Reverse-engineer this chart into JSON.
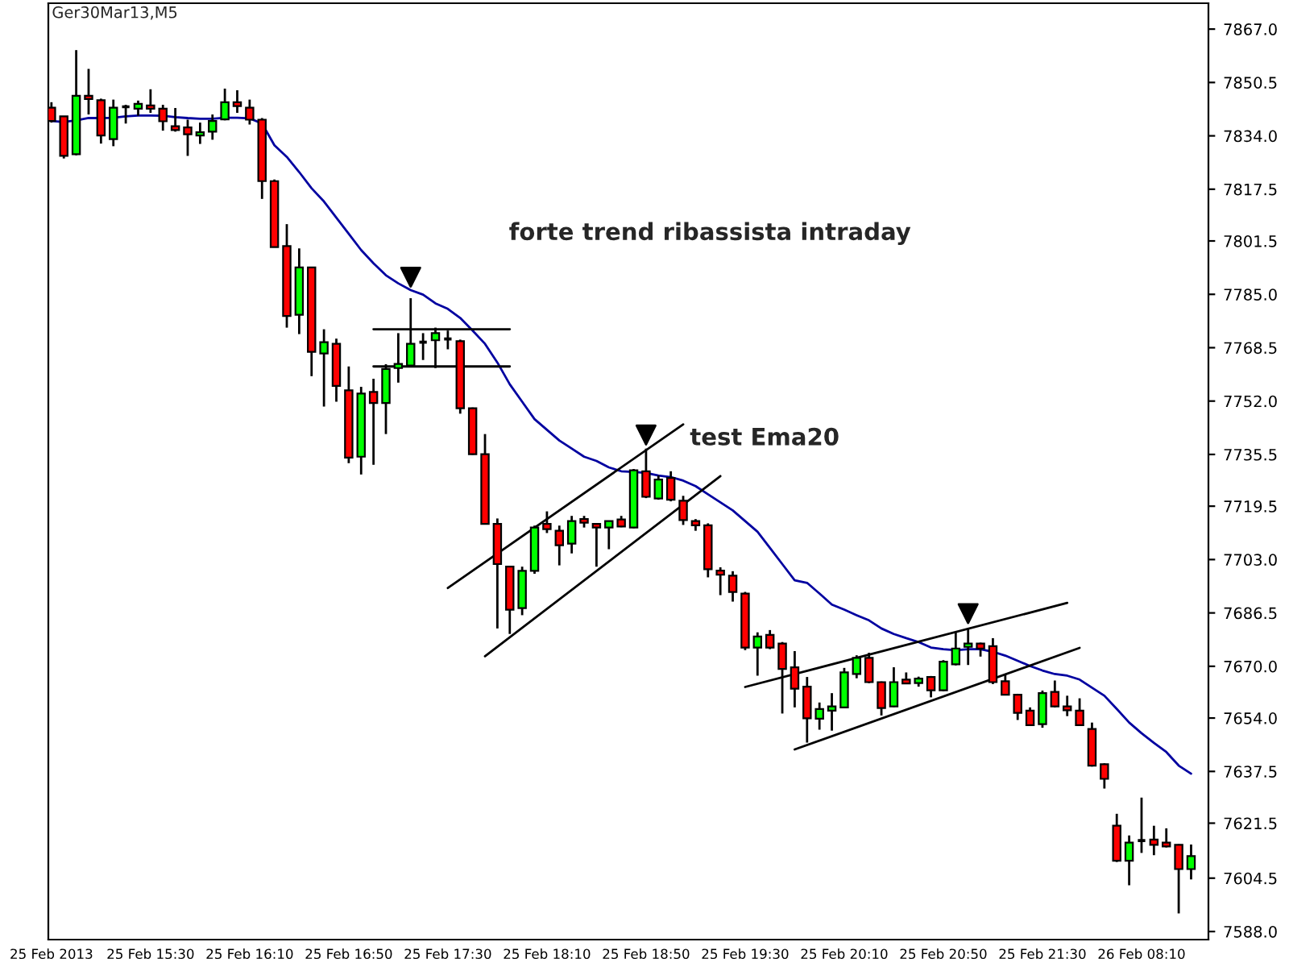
{
  "chart_data": {
    "type": "candlestick",
    "title": "Ger30Mar13,M5",
    "categories": [
      "25 Feb 2013",
      null,
      null,
      null,
      null,
      null,
      null,
      null,
      "25 Feb 15:30",
      null,
      null,
      null,
      null,
      null,
      null,
      null,
      "25 Feb 16:10",
      null,
      null,
      null,
      null,
      null,
      null,
      null,
      "25 Feb 16:50",
      null,
      null,
      null,
      null,
      null,
      null,
      null,
      "25 Feb 17:30",
      null,
      null,
      null,
      null,
      null,
      null,
      null,
      "25 Feb 18:10",
      null,
      null,
      null,
      null,
      null,
      null,
      null,
      "25 Feb 18:50",
      null,
      null,
      null,
      null,
      null,
      null,
      null,
      "25 Feb 19:30",
      null,
      null,
      null,
      null,
      null,
      null,
      null,
      "25 Feb 20:10",
      null,
      null,
      null,
      null,
      null,
      null,
      null,
      "25 Feb 20:50",
      null,
      null,
      null,
      null,
      null,
      null,
      null,
      "25 Feb 21:30",
      null,
      null,
      null,
      null,
      null,
      null,
      null,
      "26 Feb 08:10",
      null,
      null,
      null,
      null
    ],
    "ohlc": [
      [
        7842.7,
        7844.4,
        7838.1,
        7838.6
      ],
      [
        7840.0,
        7840.0,
        7827.0,
        7827.8
      ],
      [
        7828.3,
        7860.5,
        7828.0,
        7846.4
      ],
      [
        7846.4,
        7854.7,
        7840.6,
        7845.4
      ],
      [
        7845.0,
        7845.5,
        7831.6,
        7834.1
      ],
      [
        7833.0,
        7845.2,
        7830.8,
        7842.7
      ],
      [
        7843.0,
        7843.6,
        7837.8,
        7843.0
      ],
      [
        7842.4,
        7844.9,
        7840.2,
        7843.9
      ],
      [
        7843.4,
        7848.4,
        7841.1,
        7842.4
      ],
      [
        7842.4,
        7843.6,
        7835.6,
        7838.5
      ],
      [
        7837.0,
        7842.6,
        7835.3,
        7835.8
      ],
      [
        7836.6,
        7839.0,
        7827.8,
        7834.5
      ],
      [
        7834.1,
        7838.1,
        7831.5,
        7835.1
      ],
      [
        7835.3,
        7840.6,
        7832.8,
        7838.6
      ],
      [
        7839.1,
        7848.6,
        7838.8,
        7844.4
      ],
      [
        7844.4,
        7848.1,
        7841.1,
        7843.2
      ],
      [
        7842.7,
        7845.2,
        7837.5,
        7839.0
      ],
      [
        7839.0,
        7839.5,
        7814.5,
        7820.0
      ],
      [
        7820.0,
        7820.5,
        7799.5,
        7799.6
      ],
      [
        7799.9,
        7806.7,
        7774.7,
        7778.3
      ],
      [
        7778.7,
        7799.2,
        7772.7,
        7793.3
      ],
      [
        7793.3,
        7793.5,
        7759.7,
        7767.2
      ],
      [
        7766.7,
        7774.2,
        7750.3,
        7770.2
      ],
      [
        7769.7,
        7771.3,
        7751.8,
        7756.7
      ],
      [
        7755.3,
        7762.7,
        7732.8,
        7734.5
      ],
      [
        7734.8,
        7756.4,
        7729.3,
        7754.3
      ],
      [
        7754.8,
        7758.9,
        7732.3,
        7751.4
      ],
      [
        7751.4,
        7763.4,
        7741.8,
        7761.9
      ],
      [
        7762.2,
        7773.0,
        7757.7,
        7763.5
      ],
      [
        7763.0,
        7783.8,
        7763.0,
        7769.7
      ],
      [
        7770.2,
        7773.0,
        7764.7,
        7770.2
      ],
      [
        7770.8,
        7774.7,
        7762.2,
        7773.0
      ],
      [
        7771.2,
        7773.8,
        7768.0,
        7771.2
      ],
      [
        7770.5,
        7771.0,
        7748.1,
        7749.8
      ],
      [
        7749.8,
        7750.0,
        7735.4,
        7735.6
      ],
      [
        7735.6,
        7741.8,
        7713.8,
        7714.0
      ],
      [
        7714.0,
        7715.7,
        7681.7,
        7701.6
      ],
      [
        7700.8,
        7701.0,
        7680.0,
        7687.5
      ],
      [
        7688.0,
        7700.8,
        7685.8,
        7699.5
      ],
      [
        7699.5,
        7713.5,
        7698.6,
        7712.9
      ],
      [
        7714.0,
        7717.9,
        7711.2,
        7712.4
      ],
      [
        7711.9,
        7713.5,
        7701.2,
        7707.4
      ],
      [
        7707.9,
        7716.5,
        7704.9,
        7714.9
      ],
      [
        7715.5,
        7716.5,
        7712.9,
        7714.4
      ],
      [
        7714.0,
        7714.0,
        7700.8,
        7712.9
      ],
      [
        7712.9,
        7715.0,
        7706.2,
        7714.9
      ],
      [
        7715.4,
        7716.5,
        7713.0,
        7713.2
      ],
      [
        7712.9,
        7731.0,
        7712.7,
        7730.6
      ],
      [
        7730.3,
        7737.3,
        7722.0,
        7722.4
      ],
      [
        7721.9,
        7729.0,
        7721.5,
        7727.7
      ],
      [
        7728.2,
        7730.3,
        7721.0,
        7721.5
      ],
      [
        7721.2,
        7722.7,
        7713.7,
        7715.2
      ],
      [
        7714.9,
        7715.5,
        7711.9,
        7713.6
      ],
      [
        7713.6,
        7714.2,
        7697.5,
        7700.0
      ],
      [
        7699.6,
        7700.6,
        7692.0,
        7698.3
      ],
      [
        7698.0,
        7699.4,
        7690.0,
        7693.0
      ],
      [
        7692.5,
        7693.0,
        7675.0,
        7675.8
      ],
      [
        7675.8,
        7680.5,
        7667.1,
        7679.2
      ],
      [
        7679.7,
        7681.2,
        7675.3,
        7675.8
      ],
      [
        7677.0,
        7677.5,
        7655.4,
        7669.2
      ],
      [
        7669.7,
        7674.7,
        7657.3,
        7663.1
      ],
      [
        7663.7,
        7666.7,
        7646.4,
        7653.9
      ],
      [
        7653.8,
        7658.8,
        7650.4,
        7656.8
      ],
      [
        7656.3,
        7661.7,
        7650.1,
        7657.6
      ],
      [
        7657.3,
        7669.5,
        7657.0,
        7668.1
      ],
      [
        7667.6,
        7673.4,
        7666.3,
        7672.6
      ],
      [
        7672.6,
        7674.2,
        7664.8,
        7665.1
      ],
      [
        7665.1,
        7665.3,
        7654.8,
        7657.1
      ],
      [
        7657.6,
        7669.7,
        7657.4,
        7665.1
      ],
      [
        7665.9,
        7668.1,
        7664.5,
        7664.7
      ],
      [
        7664.8,
        7666.8,
        7663.7,
        7666.2
      ],
      [
        7666.7,
        7667.0,
        7660.4,
        7662.6
      ],
      [
        7662.6,
        7671.9,
        7662.3,
        7671.4
      ],
      [
        7670.6,
        7680.5,
        7670.3,
        7675.5
      ],
      [
        7676.0,
        7681.7,
        7670.4,
        7677.0
      ],
      [
        7677.0,
        7677.3,
        7673.0,
        7675.5
      ],
      [
        7676.2,
        7678.7,
        7664.5,
        7665.1
      ],
      [
        7665.4,
        7667.6,
        7661.0,
        7661.2
      ],
      [
        7661.2,
        7661.5,
        7653.4,
        7655.6
      ],
      [
        7656.3,
        7657.3,
        7651.6,
        7651.8
      ],
      [
        7652.1,
        7662.5,
        7651.0,
        7661.7
      ],
      [
        7662.1,
        7665.6,
        7657.3,
        7657.6
      ],
      [
        7657.6,
        7660.9,
        7654.6,
        7656.4
      ],
      [
        7656.3,
        7660.1,
        7651.6,
        7651.8
      ],
      [
        7650.6,
        7652.6,
        7639.0,
        7639.3
      ],
      [
        7639.7,
        7640.0,
        7632.2,
        7635.2
      ],
      [
        7620.7,
        7624.4,
        7609.5,
        7609.9
      ],
      [
        7609.9,
        7617.7,
        7602.3,
        7615.5
      ],
      [
        7616.1,
        7629.4,
        7612.3,
        7616.1
      ],
      [
        7616.4,
        7620.7,
        7611.6,
        7614.8
      ],
      [
        7615.5,
        7619.9,
        7614.0,
        7614.3
      ],
      [
        7614.8,
        7615.0,
        7593.6,
        7607.3
      ],
      [
        7607.3,
        7614.9,
        7604.1,
        7611.3
      ]
    ],
    "colors": [
      "#ff0000",
      "#ff0000",
      "#00ff00",
      "#ff0000",
      "#ff0000",
      "#00ff00",
      "#000000",
      "#00ff00",
      "#ff0000",
      "#ff0000",
      "#ff0000",
      "#ff0000",
      "#00ff00",
      "#00ff00",
      "#00ff00",
      "#ff0000",
      "#ff0000",
      "#ff0000",
      "#ff0000",
      "#ff0000",
      "#00ff00",
      "#ff0000",
      "#00ff00",
      "#ff0000",
      "#ff0000",
      "#00ff00",
      "#ff0000",
      "#00ff00",
      "#00ff00",
      "#00ff00",
      "#000000",
      "#00ff00",
      "#000000",
      "#ff0000",
      "#ff0000",
      "#ff0000",
      "#ff0000",
      "#ff0000",
      "#00ff00",
      "#00ff00",
      "#ff0000",
      "#ff0000",
      "#00ff00",
      "#ff0000",
      "#ff0000",
      "#00ff00",
      "#ff0000",
      "#00ff00",
      "#ff0000",
      "#00ff00",
      "#ff0000",
      "#ff0000",
      "#ff0000",
      "#ff0000",
      "#ff0000",
      "#ff0000",
      "#ff0000",
      "#00ff00",
      "#ff0000",
      "#ff0000",
      "#ff0000",
      "#ff0000",
      "#00ff00",
      "#00ff00",
      "#00ff00",
      "#00ff00",
      "#ff0000",
      "#ff0000",
      "#00ff00",
      "#ff0000",
      "#00ff00",
      "#ff0000",
      "#00ff00",
      "#00ff00",
      "#00ff00",
      "#ff0000",
      "#ff0000",
      "#ff0000",
      "#ff0000",
      "#ff0000",
      "#00ff00",
      "#ff0000",
      "#ff0000",
      "#ff0000",
      "#ff0000",
      "#ff0000",
      "#ff0000",
      "#00ff00",
      "#000000",
      "#ff0000",
      "#ff0000",
      "#ff0000",
      "#00ff00"
    ],
    "series": [
      {
        "type": "line",
        "color": "#0000a0",
        "values": [
          7838.6,
          7838.3,
          7838.8,
          7839.5,
          7839.5,
          7839.6,
          7840.0,
          7840.3,
          7840.3,
          7840.2,
          7839.8,
          7839.5,
          7839.3,
          7839.3,
          7839.6,
          7839.6,
          7839.4,
          7837.8,
          7831.1,
          7827.5,
          7822.8,
          7817.8,
          7813.7,
          7808.7,
          7803.7,
          7798.7,
          7794.6,
          7790.9,
          7788.4,
          7786.3,
          7784.9,
          7782.2,
          7780.5,
          7777.7,
          7773.8,
          7769.7,
          7763.9,
          7757.2,
          7751.8,
          7746.4,
          7743.1,
          7739.8,
          7737.3,
          7734.8,
          7733.5,
          7731.5,
          7730.3,
          7730.1,
          7729.8,
          7729.0,
          7728.5,
          7727.4,
          7725.7,
          7723.2,
          7720.7,
          7718.2,
          7714.9,
          7711.6,
          7706.6,
          7701.6,
          7696.6,
          7695.8,
          7692.5,
          7689.1,
          7687.5,
          7685.8,
          7684.2,
          7681.7,
          7680.0,
          7678.7,
          7677.5,
          7675.8,
          7675.3,
          7675.0,
          7675.3,
          7675.3,
          7674.5,
          7673.3,
          7671.7,
          7670.1,
          7668.7,
          7667.6,
          7667.1,
          7665.9,
          7663.4,
          7660.9,
          7656.8,
          7652.6,
          7649.3,
          7646.3,
          7643.5,
          7639.3,
          7636.8
        ]
      },
      {
        "type": "line",
        "color": "#000000",
        "values": [
          null,
          null,
          null,
          null,
          null,
          null,
          null,
          null,
          null,
          null,
          null,
          null,
          null,
          null,
          null,
          null,
          null,
          null,
          null,
          null,
          null,
          null,
          null,
          null,
          null,
          null,
          7774.2,
          null,
          null,
          null,
          null,
          null,
          null,
          null,
          null,
          null,
          null,
          7774.2,
          null,
          null,
          null,
          null,
          null,
          null,
          null,
          null,
          null,
          null,
          null,
          null,
          null,
          null,
          null,
          null,
          null,
          null,
          null,
          null,
          null,
          null,
          null,
          null,
          null,
          null,
          null,
          null,
          null,
          null,
          null,
          null,
          null,
          null,
          null,
          null,
          null,
          null,
          null,
          null,
          null,
          null,
          null,
          null,
          null,
          null,
          null,
          null,
          null,
          null,
          null,
          null,
          null,
          null,
          null
        ]
      },
      {
        "type": "line",
        "color": "#000000",
        "values": [
          null,
          null,
          null,
          null,
          null,
          null,
          null,
          null,
          null,
          null,
          null,
          null,
          null,
          null,
          null,
          null,
          null,
          null,
          null,
          null,
          null,
          null,
          null,
          null,
          null,
          null,
          7762.7,
          null,
          null,
          null,
          null,
          null,
          null,
          null,
          null,
          null,
          null,
          7762.7,
          null,
          null,
          null,
          null,
          null,
          null,
          null,
          null,
          null,
          null,
          null,
          null,
          null,
          null,
          null,
          null,
          null,
          null,
          null,
          null,
          null,
          null,
          null,
          null,
          null,
          null,
          null,
          null,
          null,
          null,
          null,
          null,
          null,
          null,
          null,
          null,
          null,
          null,
          null,
          null,
          null,
          null,
          null,
          null,
          null,
          null,
          null,
          null,
          null,
          null,
          null,
          null,
          null,
          null,
          null
        ]
      },
      {
        "type": "line",
        "color": "#000000",
        "values": [
          null,
          null,
          null,
          null,
          null,
          null,
          null,
          null,
          null,
          null,
          null,
          null,
          null,
          null,
          null,
          null,
          null,
          null,
          null,
          null,
          null,
          null,
          null,
          null,
          null,
          null,
          null,
          null,
          null,
          null,
          null,
          null,
          7694.2,
          null,
          null,
          null,
          null,
          null,
          null,
          null,
          null,
          null,
          null,
          null,
          null,
          null,
          null,
          null,
          null,
          null,
          null,
          7744.8,
          null,
          null,
          null,
          null,
          null,
          null,
          null,
          null,
          null,
          null,
          null,
          null,
          null,
          null,
          null,
          null,
          null,
          null,
          null,
          null,
          null,
          null,
          null,
          null,
          null,
          null,
          null,
          null,
          null,
          null,
          null,
          null,
          null,
          null,
          null,
          null,
          null,
          null,
          null,
          null,
          null
        ]
      },
      {
        "type": "line",
        "color": "#000000",
        "values": [
          null,
          null,
          null,
          null,
          null,
          null,
          null,
          null,
          null,
          null,
          null,
          null,
          null,
          null,
          null,
          null,
          null,
          null,
          null,
          null,
          null,
          null,
          null,
          null,
          null,
          null,
          null,
          null,
          null,
          null,
          null,
          null,
          null,
          null,
          null,
          7673.1,
          null,
          null,
          null,
          null,
          null,
          null,
          null,
          null,
          null,
          null,
          null,
          null,
          null,
          null,
          null,
          null,
          null,
          null,
          7728.8,
          null,
          null,
          null,
          null,
          null,
          null,
          null,
          null,
          null,
          null,
          null,
          null,
          null,
          null,
          null,
          null,
          null,
          null,
          null,
          null,
          null,
          null,
          null,
          null,
          null,
          null,
          null,
          null,
          null,
          null,
          null,
          null,
          null,
          null,
          null,
          null,
          null,
          null
        ]
      },
      {
        "type": "line",
        "color": "#000000",
        "values": [
          null,
          null,
          null,
          null,
          null,
          null,
          null,
          null,
          null,
          null,
          null,
          null,
          null,
          null,
          null,
          null,
          null,
          null,
          null,
          null,
          null,
          null,
          null,
          null,
          null,
          null,
          null,
          null,
          null,
          null,
          null,
          null,
          null,
          null,
          null,
          null,
          null,
          null,
          null,
          null,
          null,
          null,
          null,
          null,
          null,
          null,
          null,
          null,
          null,
          null,
          null,
          null,
          null,
          null,
          null,
          null,
          7663.6,
          null,
          null,
          null,
          null,
          null,
          null,
          null,
          null,
          null,
          null,
          null,
          null,
          null,
          null,
          null,
          null,
          null,
          null,
          null,
          null,
          null,
          null,
          null,
          null,
          null,
          7689.6,
          null,
          null,
          null,
          null,
          null,
          null,
          null,
          null,
          null,
          null
        ]
      },
      {
        "type": "line",
        "color": "#000000",
        "values": [
          null,
          null,
          null,
          null,
          null,
          null,
          null,
          null,
          null,
          null,
          null,
          null,
          null,
          null,
          null,
          null,
          null,
          null,
          null,
          null,
          null,
          null,
          null,
          null,
          null,
          null,
          null,
          null,
          null,
          null,
          null,
          null,
          null,
          null,
          null,
          null,
          null,
          null,
          null,
          null,
          null,
          null,
          null,
          null,
          null,
          null,
          null,
          null,
          null,
          null,
          null,
          null,
          null,
          null,
          null,
          null,
          null,
          null,
          null,
          null,
          7644.3,
          null,
          null,
          null,
          null,
          null,
          null,
          null,
          null,
          null,
          null,
          null,
          null,
          null,
          null,
          null,
          null,
          null,
          null,
          null,
          null,
          null,
          null,
          7675.7,
          null,
          null,
          null,
          null,
          null,
          null,
          null,
          null,
          null
        ]
      },
      {
        "type": "scatter",
        "marker": "triangle",
        "color": "#000000",
        "values": [
          null,
          null,
          null,
          null,
          null,
          null,
          null,
          null,
          null,
          null,
          null,
          null,
          null,
          null,
          null,
          null,
          null,
          null,
          null,
          null,
          null,
          null,
          null,
          null,
          null,
          null,
          null,
          null,
          null,
          7790.3,
          null,
          null,
          null,
          null,
          null,
          null,
          null,
          null,
          null,
          null,
          null,
          null,
          null,
          null,
          null,
          null,
          null,
          null,
          7741.5,
          null,
          null,
          null,
          null,
          null,
          null,
          null,
          null,
          null,
          null,
          null,
          null,
          null,
          null,
          null,
          null,
          null,
          null,
          null,
          null,
          null,
          null,
          null,
          null,
          null,
          7686.3,
          null,
          null,
          null,
          null,
          null,
          null,
          null,
          null,
          null,
          null,
          null,
          null,
          null,
          null,
          null,
          null,
          null,
          null
        ]
      }
    ],
    "ylim": [
      7585.5,
      7875.0
    ],
    "yticks": [
      {
        "value": 7867,
        "label": "7867.0"
      },
      {
        "value": 7850.5,
        "label": "7850.5"
      },
      {
        "value": 7834,
        "label": "7834.0"
      },
      {
        "value": 7817.5,
        "label": "7817.5"
      },
      {
        "value": 7801.5,
        "label": "7801.5"
      },
      {
        "value": 7785,
        "label": "7785.0"
      },
      {
        "value": 7768.5,
        "label": "7768.5"
      },
      {
        "value": 7752,
        "label": "7752.0"
      },
      {
        "value": 7735.5,
        "label": "7735.5"
      },
      {
        "value": 7719.5,
        "label": "7719.5"
      },
      {
        "value": 7703,
        "label": "7703.0"
      },
      {
        "value": 7686.5,
        "label": "7686.5"
      },
      {
        "value": 7670,
        "label": "7670.0"
      },
      {
        "value": 7654,
        "label": "7654.0"
      },
      {
        "value": 7637.5,
        "label": "7637.5"
      },
      {
        "value": 7621.5,
        "label": "7621.5"
      },
      {
        "value": 7604.5,
        "label": "7604.5"
      },
      {
        "value": 7588,
        "label": "7588.0"
      }
    ],
    "annotations": [
      "forte trend ribassista intraday",
      "test Ema20"
    ]
  }
}
